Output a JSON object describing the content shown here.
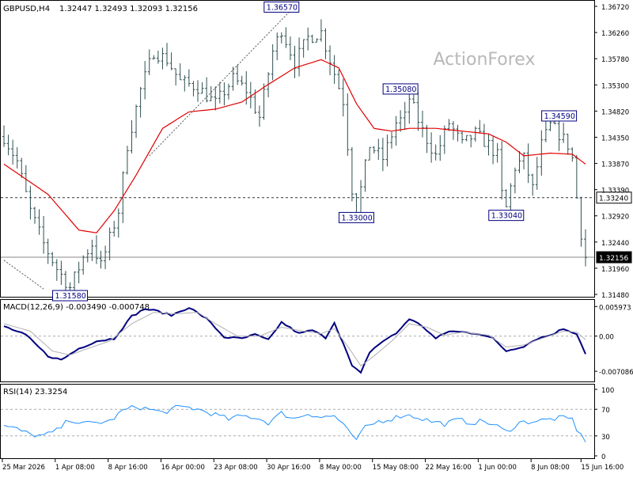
{
  "header": {
    "symbol_label": "GBPUSD,H4",
    "ohlc": "1.32447 1.32493 1.32093 1.32156"
  },
  "watermark": "ActionForex",
  "colors": {
    "bars": "#2f4f4f",
    "ma": "#e00000",
    "macd": "#000080",
    "signal": "#b0b0b0",
    "rsi": "#1e90ff",
    "label_bg": "#ffffff",
    "label_border": "#000080",
    "label_text": "#000080"
  },
  "chart_data": [
    {
      "type": "ohlc",
      "title": "GBPUSD,H4",
      "x_categories": [
        "25 Mar 2026",
        "1 Apr 08:00",
        "8 Apr 16:00",
        "16 Apr 00:00",
        "23 Apr 08:00",
        "30 Apr 16:00",
        "8 May 00:00",
        "15 May 08:00",
        "22 May 16:00",
        "1 Jun 00:00",
        "8 Jun 08:00",
        "15 Jun 16:00"
      ],
      "ylim": [
        1.3148,
        1.3672
      ],
      "y_ticks": [
        "1.36720",
        "1.36260",
        "1.35780",
        "1.35300",
        "1.34820",
        "1.34350",
        "1.33870",
        "1.33390",
        "1.32920",
        "1.32440",
        "1.31960",
        "1.31480"
      ],
      "price_path": [
        [
          0,
          1.3435
        ],
        [
          3,
          1.339
        ],
        [
          6,
          1.33
        ],
        [
          9,
          1.324
        ],
        [
          12,
          1.3195
        ],
        [
          15,
          1.316
        ],
        [
          18,
          1.3215
        ],
        [
          20,
          1.324
        ],
        [
          22,
          1.32
        ],
        [
          24,
          1.325
        ],
        [
          26,
          1.33
        ],
        [
          28,
          1.342
        ],
        [
          31,
          1.352
        ],
        [
          34,
          1.359
        ],
        [
          37,
          1.3575
        ],
        [
          40,
          1.3535
        ],
        [
          44,
          1.3525
        ],
        [
          48,
          1.3495
        ],
        [
          52,
          1.354
        ],
        [
          55,
          1.352
        ],
        [
          58,
          1.347
        ],
        [
          61,
          1.359
        ],
        [
          63,
          1.363
        ],
        [
          66,
          1.357
        ],
        [
          69,
          1.3615
        ],
        [
          72,
          1.3625
        ],
        [
          75,
          1.355
        ],
        [
          77,
          1.35
        ],
        [
          78,
          1.342
        ],
        [
          79,
          1.334
        ],
        [
          80,
          1.33
        ],
        [
          81,
          1.334
        ],
        [
          83,
          1.342
        ],
        [
          86,
          1.3395
        ],
        [
          89,
          1.346
        ],
        [
          91,
          1.347
        ],
        [
          92,
          1.3505
        ],
        [
          95,
          1.3445
        ],
        [
          98,
          1.34
        ],
        [
          101,
          1.346
        ],
        [
          104,
          1.342
        ],
        [
          107,
          1.344
        ],
        [
          110,
          1.342
        ],
        [
          112,
          1.34
        ],
        [
          113,
          1.333
        ],
        [
          114,
          1.3305
        ],
        [
          116,
          1.338
        ],
        [
          118,
          1.3395
        ],
        [
          120,
          1.334
        ],
        [
          122,
          1.342
        ],
        [
          124,
          1.3455
        ],
        [
          126,
          1.344
        ],
        [
          128,
          1.342
        ],
        [
          129,
          1.3395
        ],
        [
          130,
          1.3324
        ],
        [
          131,
          1.326
        ],
        [
          132,
          1.3216
        ]
      ],
      "moving_average": [
        [
          0,
          1.3385
        ],
        [
          10,
          1.333
        ],
        [
          17,
          1.3265
        ],
        [
          21,
          1.326
        ],
        [
          25,
          1.33
        ],
        [
          30,
          1.3365
        ],
        [
          36,
          1.345
        ],
        [
          42,
          1.348
        ],
        [
          48,
          1.3485
        ],
        [
          54,
          1.3498
        ],
        [
          60,
          1.353
        ],
        [
          66,
          1.356
        ],
        [
          72,
          1.3575
        ],
        [
          76,
          1.356
        ],
        [
          80,
          1.3495
        ],
        [
          84,
          1.345
        ],
        [
          88,
          1.3445
        ],
        [
          92,
          1.345
        ],
        [
          98,
          1.345
        ],
        [
          104,
          1.3445
        ],
        [
          110,
          1.344
        ],
        [
          114,
          1.3425
        ],
        [
          118,
          1.34
        ],
        [
          124,
          1.3405
        ],
        [
          129,
          1.3403
        ],
        [
          132,
          1.3385
        ]
      ],
      "annotations": [
        {
          "text": "1.36570",
          "x": 63,
          "y": 1.3657
        },
        {
          "text": "1.35080",
          "x": 90,
          "y": 1.3508
        },
        {
          "text": "1.34590",
          "x": 126,
          "y": 1.3459
        },
        {
          "text": "1.33000",
          "x": 80,
          "y": 1.33
        },
        {
          "text": "1.33040",
          "x": 114,
          "y": 1.3304
        },
        {
          "text": "1.31580",
          "x": 15,
          "y": 1.3158
        }
      ],
      "horizontal_lines": [
        {
          "value": 1.3324,
          "label": "1.33240",
          "style": "dashed"
        },
        {
          "value": 1.32156,
          "label": "1.32156",
          "style": "solid"
        }
      ],
      "trend_lines": [
        {
          "from": [
            0,
            1.321
          ],
          "to": [
            9,
            1.3158
          ]
        },
        {
          "from": [
            33,
            1.34
          ],
          "to": [
            66,
            1.3672
          ]
        }
      ]
    },
    {
      "type": "line",
      "title": "MACD(12,26,9) -0.003490 -0.000748",
      "ylim": [
        -0.0085,
        0.0065
      ],
      "y_ticks": [
        "0.005973",
        "0.00",
        "-0.007086"
      ],
      "series": [
        {
          "role": "macd",
          "values": [
            [
              0,
              0.002
            ],
            [
              5,
              0.0002
            ],
            [
              10,
              -0.004
            ],
            [
              13,
              -0.0048
            ],
            [
              17,
              -0.0025
            ],
            [
              21,
              -0.001
            ],
            [
              25,
              -0.0005
            ],
            [
              29,
              0.004
            ],
            [
              32,
              0.0055
            ],
            [
              35,
              0.005
            ],
            [
              38,
              0.0042
            ],
            [
              42,
              0.0058
            ],
            [
              46,
              0.0035
            ],
            [
              50,
              -0.0002
            ],
            [
              54,
              -0.0005
            ],
            [
              57,
              0.0003
            ],
            [
              60,
              -0.0008
            ],
            [
              63,
              0.0028
            ],
            [
              67,
              0.0005
            ],
            [
              70,
              0.0012
            ],
            [
              73,
              -0.0003
            ],
            [
              75,
              0.0028
            ],
            [
              77,
              -0.0015
            ],
            [
              79,
              -0.006
            ],
            [
              81,
              -0.0075
            ],
            [
              83,
              -0.0032
            ],
            [
              86,
              -0.001
            ],
            [
              89,
              0.0005
            ],
            [
              92,
              0.0035
            ],
            [
              95,
              0.002
            ],
            [
              98,
              -0.0005
            ],
            [
              101,
              0.001
            ],
            [
              104,
              0.0008
            ],
            [
              108,
              0.0005
            ],
            [
              111,
              -0.0005
            ],
            [
              114,
              -0.003
            ],
            [
              118,
              -0.002
            ],
            [
              121,
              -0.0005
            ],
            [
              124,
              0.0002
            ],
            [
              127,
              0.0015
            ],
            [
              130,
              0.0005
            ],
            [
              132,
              -0.0035
            ]
          ]
        },
        {
          "role": "signal",
          "values": [
            [
              0,
              0.0025
            ],
            [
              6,
              0.001
            ],
            [
              11,
              -0.003
            ],
            [
              15,
              -0.0038
            ],
            [
              19,
              -0.0025
            ],
            [
              24,
              -0.001
            ],
            [
              29,
              0.0025
            ],
            [
              34,
              0.0048
            ],
            [
              39,
              0.0045
            ],
            [
              44,
              0.0048
            ],
            [
              48,
              0.0025
            ],
            [
              53,
              0.0
            ],
            [
              58,
              0.0
            ],
            [
              63,
              0.0018
            ],
            [
              68,
              0.001
            ],
            [
              72,
              0.0005
            ],
            [
              75,
              0.0015
            ],
            [
              78,
              -0.002
            ],
            [
              81,
              -0.006
            ],
            [
              84,
              -0.004
            ],
            [
              88,
              -0.001
            ],
            [
              92,
              0.0025
            ],
            [
              96,
              0.0018
            ],
            [
              100,
              0.0002
            ],
            [
              104,
              0.0008
            ],
            [
              110,
              0.0002
            ],
            [
              114,
              -0.0022
            ],
            [
              118,
              -0.0018
            ],
            [
              122,
              -0.0005
            ],
            [
              127,
              0.001
            ],
            [
              130,
              0.0008
            ],
            [
              132,
              -0.0007
            ]
          ]
        }
      ]
    },
    {
      "type": "line",
      "title": "RSI(14) 23.3254",
      "ylim": [
        0,
        100
      ],
      "y_ticks": [
        "100",
        "70",
        "30",
        "0"
      ],
      "levels": [
        70,
        30
      ],
      "series": [
        {
          "role": "rsi",
          "values": [
            [
              0,
              45
            ],
            [
              3,
              40
            ],
            [
              6,
              32
            ],
            [
              9,
              30
            ],
            [
              12,
              38
            ],
            [
              15,
              55
            ],
            [
              18,
              48
            ],
            [
              21,
              50
            ],
            [
              24,
              52
            ],
            [
              27,
              68
            ],
            [
              30,
              74
            ],
            [
              33,
              70
            ],
            [
              36,
              65
            ],
            [
              39,
              72
            ],
            [
              42,
              73
            ],
            [
              45,
              68
            ],
            [
              48,
              62
            ],
            [
              51,
              55
            ],
            [
              54,
              60
            ],
            [
              57,
              58
            ],
            [
              60,
              50
            ],
            [
              63,
              64
            ],
            [
              66,
              56
            ],
            [
              69,
              64
            ],
            [
              72,
              58
            ],
            [
              75,
              60
            ],
            [
              77,
              48
            ],
            [
              79,
              28
            ],
            [
              80,
              25
            ],
            [
              82,
              42
            ],
            [
              85,
              52
            ],
            [
              88,
              56
            ],
            [
              91,
              62
            ],
            [
              94,
              58
            ],
            [
              97,
              52
            ],
            [
              100,
              48
            ],
            [
              103,
              54
            ],
            [
              106,
              50
            ],
            [
              109,
              52
            ],
            [
              112,
              44
            ],
            [
              114,
              36
            ],
            [
              117,
              50
            ],
            [
              120,
              52
            ],
            [
              123,
              54
            ],
            [
              126,
              57
            ],
            [
              129,
              55
            ],
            [
              130,
              40
            ],
            [
              131,
              30
            ],
            [
              132,
              23.3
            ]
          ]
        }
      ]
    }
  ]
}
